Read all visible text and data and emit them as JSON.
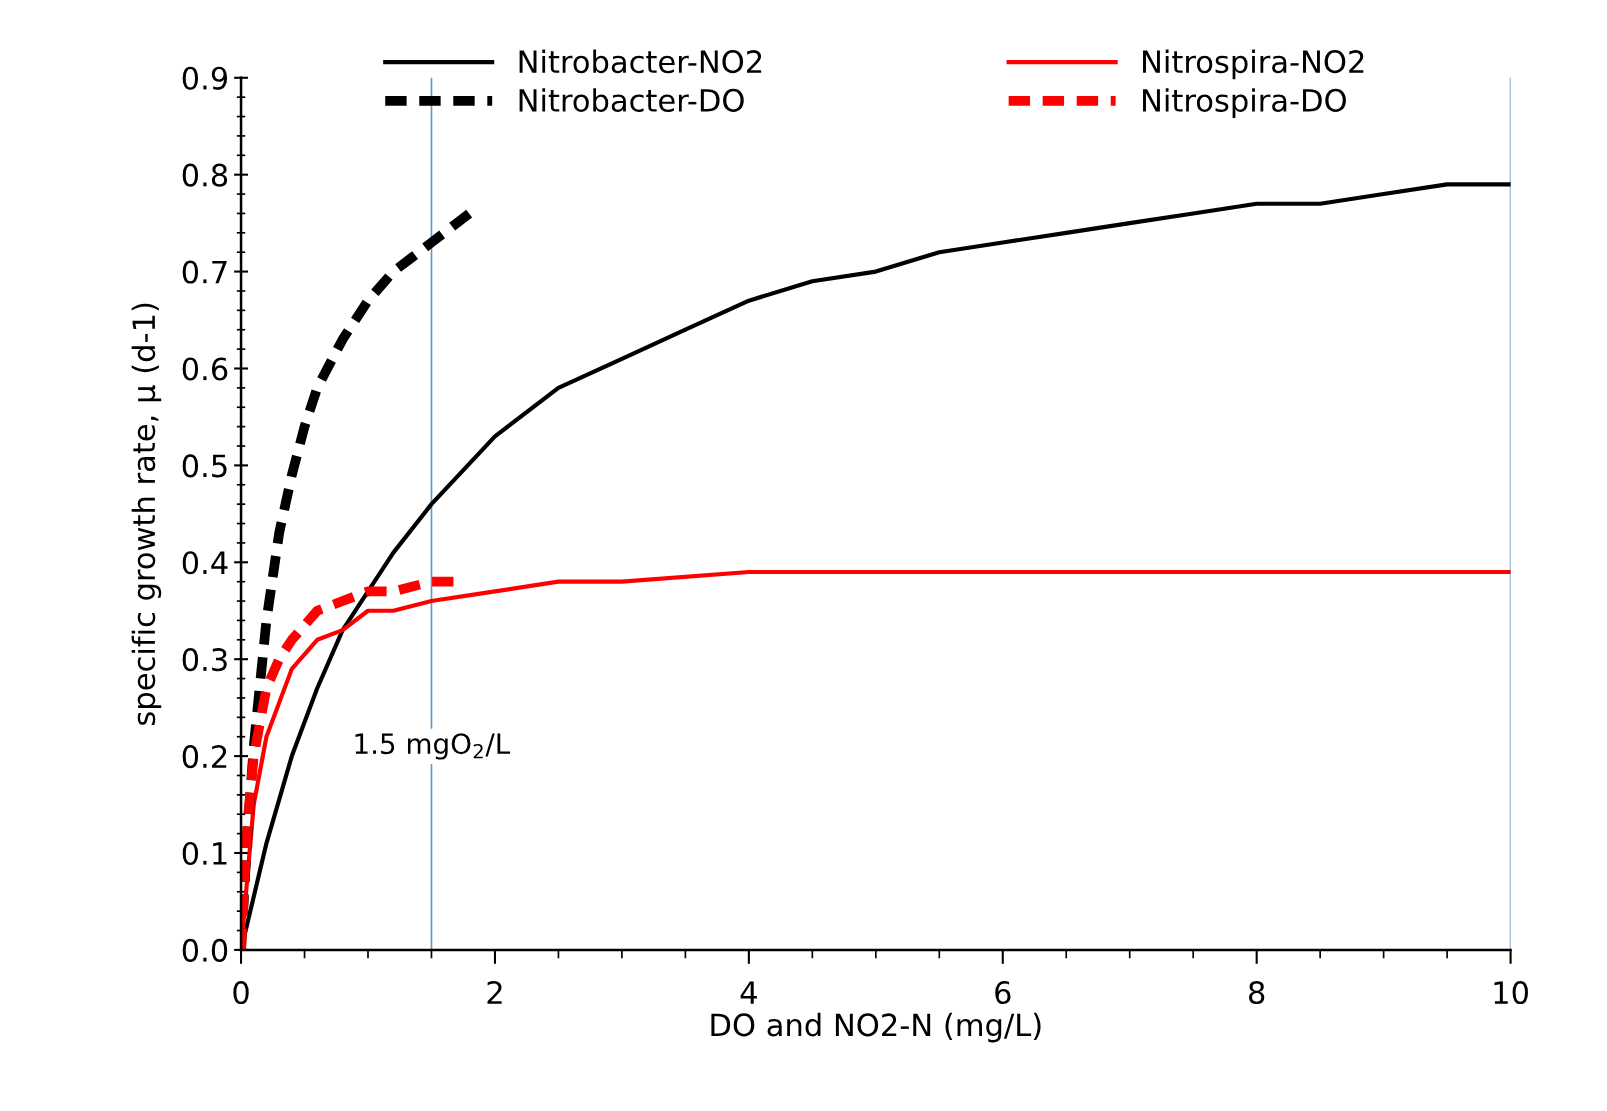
{
  "chart_data": {
    "type": "line",
    "xlabel": "DO and NO2-N (mg/L)",
    "ylabel": "specific growth rate, μ (d-1)",
    "xlim": [
      0,
      10
    ],
    "ylim": [
      0,
      0.9
    ],
    "xticks": [
      0,
      2,
      4,
      6,
      8,
      10
    ],
    "yticks": [
      {
        "value": 0,
        "label": "0.0"
      },
      0.1,
      0.2,
      0.3,
      0.4,
      0.5,
      0.6,
      0.7,
      0.8,
      0.9
    ],
    "grid": false,
    "legend": "top",
    "marker": "none",
    "series": [
      {
        "name": "Nitrobacter-NO2",
        "color": "#000000",
        "line_style": "solid",
        "x": [
          0,
          0.2,
          0.4,
          0.6,
          0.8,
          1,
          1.2,
          1.5,
          2,
          2.5,
          3,
          3.5,
          4,
          4.5,
          5,
          5.5,
          6,
          6.5,
          7,
          7.5,
          8,
          8.5,
          9,
          9.5,
          10
        ],
        "values": [
          0,
          0.11,
          0.2,
          0.27,
          0.33,
          0.37,
          0.41,
          0.46,
          0.53,
          0.58,
          0.61,
          0.64,
          0.67,
          0.69,
          0.7,
          0.72,
          0.73,
          0.74,
          0.75,
          0.76,
          0.77,
          0.77,
          0.78,
          0.79,
          0.79
        ]
      },
      {
        "name": "Nitrospira-NO2",
        "color": "#ff0000",
        "line_style": "solid",
        "x": [
          0,
          0.1,
          0.2,
          0.4,
          0.6,
          0.8,
          1,
          1.2,
          1.5,
          2,
          2.5,
          3,
          4,
          5,
          6,
          7,
          8,
          9,
          10
        ],
        "values": [
          0,
          0.15,
          0.22,
          0.29,
          0.32,
          0.33,
          0.35,
          0.35,
          0.36,
          0.37,
          0.38,
          0.38,
          0.39,
          0.39,
          0.39,
          0.39,
          0.39,
          0.39,
          0.39
        ]
      },
      {
        "name": "Nitrobacter-DO",
        "color": "#000000",
        "line_style": "dashed",
        "x": [
          0,
          0.05,
          0.1,
          0.2,
          0.3,
          0.4,
          0.5,
          0.6,
          0.8,
          1,
          1.2,
          1.5,
          1.8
        ],
        "values": [
          0,
          0.12,
          0.21,
          0.34,
          0.43,
          0.49,
          0.54,
          0.58,
          0.63,
          0.67,
          0.7,
          0.73,
          0.76
        ]
      },
      {
        "name": "Nitrospira-DO",
        "color": "#ff0000",
        "line_style": "dashed",
        "x": [
          0,
          0.05,
          0.1,
          0.2,
          0.3,
          0.4,
          0.6,
          0.8,
          1,
          1.2,
          1.5,
          1.7
        ],
        "values": [
          0,
          0.13,
          0.2,
          0.27,
          0.3,
          0.32,
          0.35,
          0.36,
          0.37,
          0.37,
          0.38,
          0.38
        ]
      }
    ],
    "ref_lines": [
      {
        "axis": "x",
        "value": 1.5,
        "label": "1.5 mgO$_{2}$/L",
        "color": "#5b9bd5"
      },
      {
        "axis": "x",
        "value": 10,
        "color": "#5b9bd5"
      }
    ]
  }
}
